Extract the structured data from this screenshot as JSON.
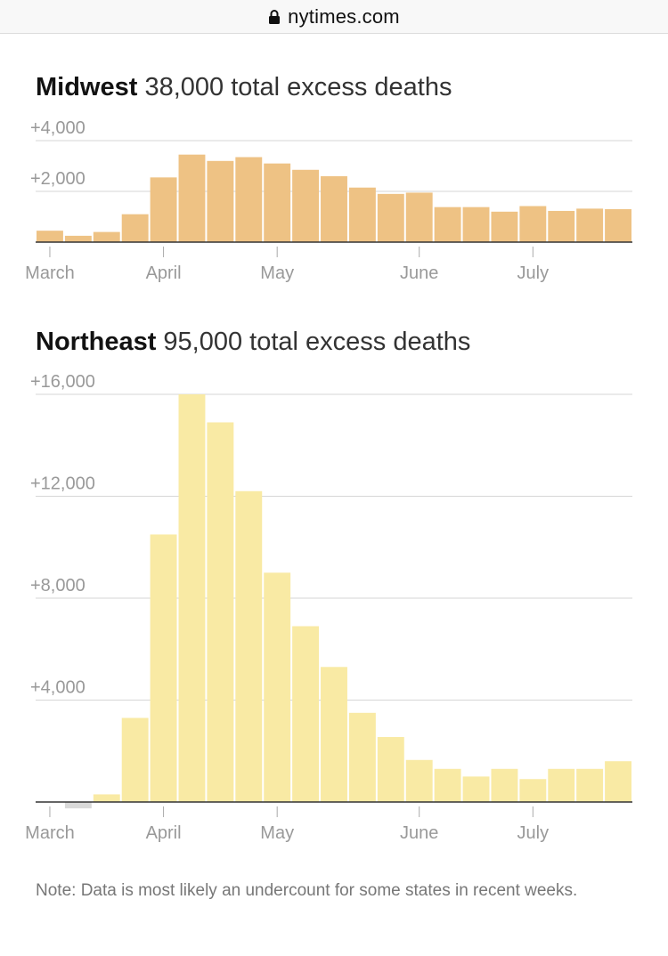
{
  "browser": {
    "domain": "nytimes.com"
  },
  "charts": {
    "midwest": {
      "region": "Midwest",
      "subtitle": "38,000 total excess deaths"
    },
    "northeast": {
      "region": "Northeast",
      "subtitle": "95,000 total excess deaths"
    }
  },
  "note": "Note: Data is most likely an undercount for some states in recent weeks.",
  "colors": {
    "midwest_bar": "#eec284",
    "northeast_bar": "#f9eaa4",
    "negative_bar": "#d9d9d9",
    "grid": "#d6d6d6",
    "axis": "#333333"
  },
  "chart_data": [
    {
      "type": "bar",
      "title": "Midwest 38,000 total excess deaths",
      "xlabel": "",
      "ylabel": "",
      "ylim": [
        0,
        4000
      ],
      "ytick_values": [
        2000,
        4000
      ],
      "ytick_labels": [
        "+2,000",
        "+4,000"
      ],
      "month_labels": [
        "March",
        "April",
        "May",
        "June",
        "July"
      ],
      "month_week_index": [
        0.5,
        4.5,
        8.5,
        13.5,
        17.5
      ],
      "categories": [
        "w1",
        "w2",
        "w3",
        "w4",
        "w5",
        "w6",
        "w7",
        "w8",
        "w9",
        "w10",
        "w11",
        "w12",
        "w13",
        "w14",
        "w15",
        "w16",
        "w17",
        "w18",
        "w19",
        "w20",
        "w21"
      ],
      "values": [
        450,
        250,
        400,
        1100,
        2550,
        3450,
        3200,
        3350,
        3100,
        2850,
        2600,
        2150,
        1900,
        1950,
        1380,
        1380,
        1200,
        1420,
        1230,
        1320,
        1300
      ]
    },
    {
      "type": "bar",
      "title": "Northeast 95,000 total excess deaths",
      "xlabel": "",
      "ylabel": "",
      "ylim": [
        0,
        16000
      ],
      "ytick_values": [
        4000,
        8000,
        12000,
        16000
      ],
      "ytick_labels": [
        "+4,000",
        "+8,000",
        "+12,000",
        "+16,000"
      ],
      "month_labels": [
        "March",
        "April",
        "May",
        "June",
        "July"
      ],
      "month_week_index": [
        0.5,
        4.5,
        8.5,
        13.5,
        17.5
      ],
      "categories": [
        "w1",
        "w2",
        "w3",
        "w4",
        "w5",
        "w6",
        "w7",
        "w8",
        "w9",
        "w10",
        "w11",
        "w12",
        "w13",
        "w14",
        "w15",
        "w16",
        "w17",
        "w18",
        "w19",
        "w20",
        "w21"
      ],
      "values": [
        0,
        -250,
        300,
        3300,
        10500,
        16000,
        14900,
        12200,
        9000,
        6900,
        5300,
        3500,
        2550,
        1650,
        1300,
        1000,
        1300,
        900,
        1300,
        1300,
        1600
      ]
    }
  ]
}
